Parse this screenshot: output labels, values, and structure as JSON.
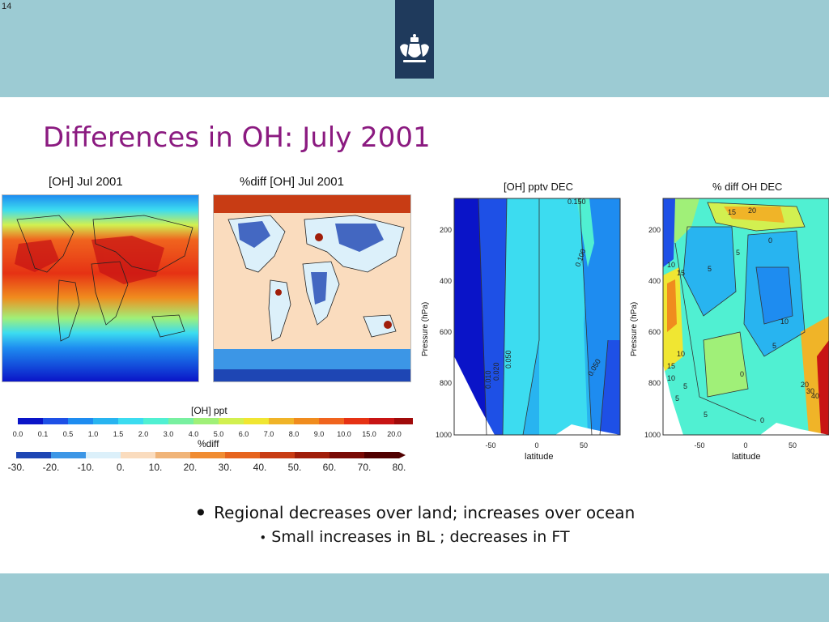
{
  "slide": {
    "page_number": "14",
    "title": "Differences in OH: July 2001"
  },
  "panels": {
    "map1_title": "[OH] Jul 2001",
    "map2_title": "%diff [OH] Jul 2001",
    "contour1_title": "[OH] pptv DEC",
    "contour2_title": "% diff OH DEC"
  },
  "colorbars": {
    "oh": {
      "title": "[OH] ppt",
      "ticks": [
        "0.0",
        "0.1",
        "0.5",
        "1.0",
        "1.5",
        "2.0",
        "3.0",
        "4.0",
        "5.0",
        "6.0",
        "7.0",
        "8.0",
        "9.0",
        "10.0",
        "15.0",
        "20.0"
      ],
      "colors": [
        "#0a14c8",
        "#1e50e6",
        "#1e8cf0",
        "#28b4f0",
        "#3cdcf0",
        "#50f0d2",
        "#78f0a0",
        "#a0f078",
        "#d2f050",
        "#f0e632",
        "#f0b428",
        "#f08c1e",
        "#f0641e",
        "#e63214",
        "#c81414",
        "#a00a0a"
      ]
    },
    "diff": {
      "title": "%diff",
      "ticks": [
        "-30.",
        "-20.",
        "-10.",
        "0.",
        "10.",
        "20.",
        "30.",
        "40.",
        "50.",
        "60.",
        "70.",
        "80."
      ],
      "colors": [
        "#1e46b4",
        "#3c96e6",
        "#dcf0fa",
        "#fadcbe",
        "#f0b478",
        "#f08c32",
        "#e6641e",
        "#c83c14",
        "#a01e0a",
        "#780a05",
        "#500000"
      ]
    }
  },
  "contour_axes": {
    "ylabel": "Pressure (hPa)",
    "xlabel": "latitude",
    "yticks": [
      "200",
      "400",
      "600",
      "800",
      "1000"
    ],
    "xticks": [
      "-50",
      "0",
      "50"
    ],
    "contour1_labels": [
      "0.150",
      "0.100",
      "0.050",
      "0.050",
      "0.020",
      "0.010"
    ],
    "contour2_labels": [
      "20",
      "15",
      "0",
      "5",
      "10",
      "15",
      "5",
      "10",
      "5",
      "0",
      "5",
      "10",
      "15",
      "5",
      "0",
      "5",
      "10",
      "20",
      "30",
      "40"
    ]
  },
  "bullets": {
    "main": "Regional decreases over land; increases over ocean",
    "sub": "Small increases in BL ; decreases in FT"
  }
}
